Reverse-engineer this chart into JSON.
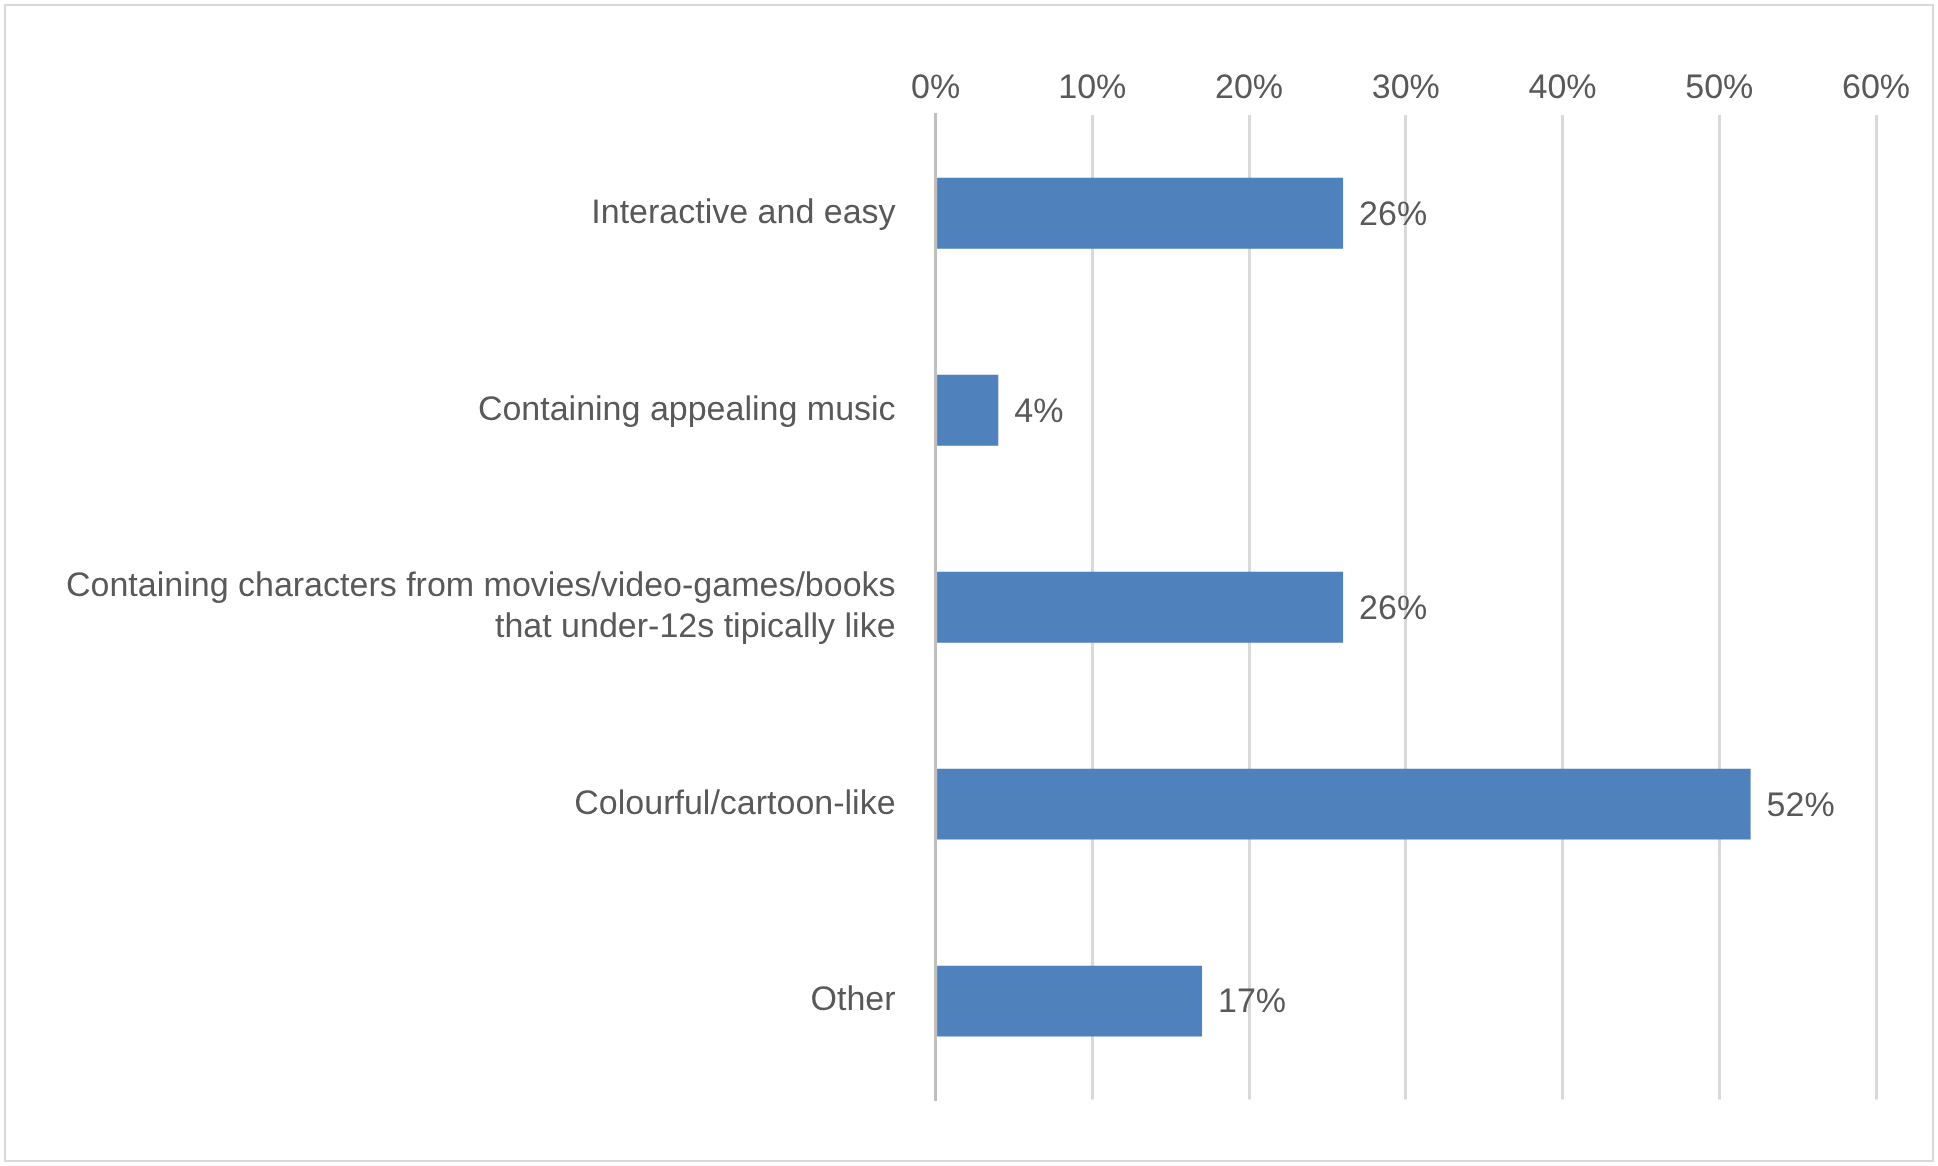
{
  "chart_data": {
    "type": "bar",
    "orientation": "horizontal",
    "categories": [
      "Interactive and easy",
      "Containing appealing music",
      "Containing characters from movies/video-games/books that under-12s tipically like",
      "Colourful/cartoon-like",
      "Other"
    ],
    "values": [
      26,
      4,
      26,
      52,
      17
    ],
    "value_labels": [
      "26%",
      "4%",
      "26%",
      "52%",
      "17%"
    ],
    "color": "#4f81bd",
    "xlim": [
      0,
      60
    ],
    "xticks": [
      {
        "value": 0,
        "label": "0%"
      },
      {
        "value": 10,
        "label": "10%"
      },
      {
        "value": 20,
        "label": "20%"
      },
      {
        "value": 30,
        "label": "30%"
      },
      {
        "value": 40,
        "label": "40%"
      },
      {
        "value": 50,
        "label": "50%"
      },
      {
        "value": 60,
        "label": "60%"
      }
    ],
    "grid": "x",
    "legend": false
  }
}
